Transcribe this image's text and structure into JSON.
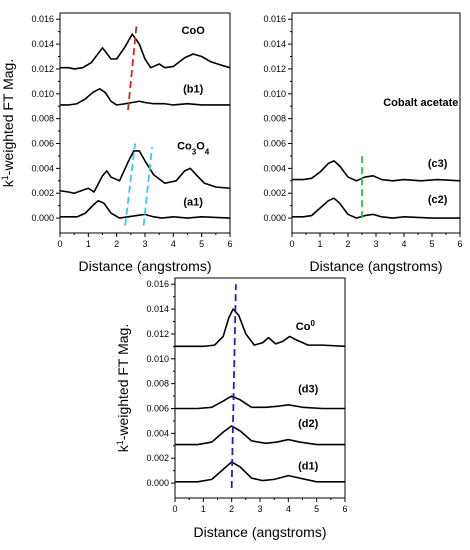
{
  "chart_data": [
    {
      "id": "top-left",
      "type": "line",
      "xlabel": "Distance (angstroms)",
      "ylabel": "k1-weighted FT Mag.",
      "ylabel_main": "k",
      "ylabel_sup": "1",
      "ylabel_rest": "-weighted FT Mag.",
      "xlim": [
        0,
        6
      ],
      "ylim": [
        -0.0012,
        0.0165
      ],
      "xticks": [
        "0",
        "1",
        "2",
        "3",
        "4",
        "5",
        "6"
      ],
      "yticks": [
        "0.000",
        "0.002",
        "0.004",
        "0.006",
        "0.008",
        "0.010",
        "0.012",
        "0.014",
        "0.016"
      ],
      "show_xlabel": true,
      "show_ylabel": true,
      "series": [
        {
          "name": "CoO",
          "color": "#000000",
          "points": [
            [
              0,
              0.0121
            ],
            [
              0.3,
              0.0121
            ],
            [
              0.5,
              0.012
            ],
            [
              0.8,
              0.0121
            ],
            [
              1.1,
              0.0125
            ],
            [
              1.5,
              0.0137
            ],
            [
              1.8,
              0.0128
            ],
            [
              2.0,
              0.0128
            ],
            [
              2.3,
              0.0138
            ],
            [
              2.55,
              0.0148
            ],
            [
              2.8,
              0.014
            ],
            [
              3.0,
              0.0128
            ],
            [
              3.2,
              0.0121
            ],
            [
              3.5,
              0.0124
            ],
            [
              3.7,
              0.0121
            ],
            [
              4.0,
              0.0122
            ],
            [
              4.4,
              0.0129
            ],
            [
              4.7,
              0.0132
            ],
            [
              5.0,
              0.013
            ],
            [
              5.3,
              0.0126
            ],
            [
              5.7,
              0.0123
            ],
            [
              6,
              0.0121
            ]
          ]
        },
        {
          "name": "(b1)",
          "color": "#000000",
          "points": [
            [
              0,
              0.0091
            ],
            [
              0.3,
              0.0091
            ],
            [
              0.6,
              0.0092
            ],
            [
              0.9,
              0.0096
            ],
            [
              1.15,
              0.0101
            ],
            [
              1.4,
              0.0104
            ],
            [
              1.6,
              0.0101
            ],
            [
              1.8,
              0.0094
            ],
            [
              2.0,
              0.0091
            ],
            [
              2.3,
              0.0092
            ],
            [
              2.55,
              0.0093
            ],
            [
              2.8,
              0.0094
            ],
            [
              3.0,
              0.0093
            ],
            [
              3.3,
              0.0092
            ],
            [
              3.7,
              0.0092
            ],
            [
              4.0,
              0.0091
            ],
            [
              4.5,
              0.0092
            ],
            [
              5.0,
              0.0091
            ],
            [
              5.5,
              0.0091
            ],
            [
              6,
              0.0091
            ]
          ]
        },
        {
          "name": "Co3O4",
          "color": "#000000",
          "points": [
            [
              0,
              0.0022
            ],
            [
              0.3,
              0.0021
            ],
            [
              0.5,
              0.002
            ],
            [
              0.75,
              0.0022
            ],
            [
              1.0,
              0.0024
            ],
            [
              1.2,
              0.0021
            ],
            [
              1.5,
              0.0034
            ],
            [
              1.65,
              0.0038
            ],
            [
              1.8,
              0.0033
            ],
            [
              2.1,
              0.003
            ],
            [
              2.4,
              0.0045
            ],
            [
              2.6,
              0.0054
            ],
            [
              2.8,
              0.0054
            ],
            [
              3.0,
              0.0046
            ],
            [
              3.3,
              0.0035
            ],
            [
              3.7,
              0.0028
            ],
            [
              4.1,
              0.003
            ],
            [
              4.4,
              0.0038
            ],
            [
              4.6,
              0.004
            ],
            [
              4.8,
              0.0035
            ],
            [
              5.1,
              0.0028
            ],
            [
              5.5,
              0.0025
            ],
            [
              6,
              0.0024
            ]
          ]
        },
        {
          "name": "(a1)",
          "color": "#000000",
          "points": [
            [
              0,
              0.0001
            ],
            [
              0.3,
              0.0001
            ],
            [
              0.6,
              0.0001
            ],
            [
              0.9,
              0.0004
            ],
            [
              1.15,
              0.001
            ],
            [
              1.35,
              0.0014
            ],
            [
              1.55,
              0.0012
            ],
            [
              1.8,
              0.0004
            ],
            [
              2.1,
              0.0
            ],
            [
              2.4,
              0.0001
            ],
            [
              2.7,
              0.0002
            ],
            [
              3.0,
              0.0003
            ],
            [
              3.3,
              0.0001
            ],
            [
              3.6,
              0.0
            ],
            [
              4.0,
              0.0001
            ],
            [
              4.5,
              0.0
            ],
            [
              5.0,
              0.0001
            ],
            [
              6,
              0.0
            ]
          ]
        }
      ],
      "annotations": [
        {
          "label": "CoO",
          "x": 4.7,
          "y": 0.0148
        },
        {
          "label": "(b1)",
          "x": 4.7,
          "y": 0.0101
        },
        {
          "label": "Co3O4",
          "sub": "3",
          "x": 4.7,
          "y": 0.0055
        },
        {
          "label": "(a1)",
          "x": 4.7,
          "y": 0.001
        }
      ],
      "ref_lines": [
        {
          "color": "#e02020",
          "x_start": 2.4,
          "y_start": 0.0087,
          "x_end": 2.7,
          "y_end": 0.0155
        },
        {
          "color": "#30d0e0",
          "x_start": 2.3,
          "y_start": -0.0006,
          "x_end": 2.65,
          "y_end": 0.006
        },
        {
          "color": "#30d0e0",
          "x_start": 2.95,
          "y_start": -0.0006,
          "x_end": 3.25,
          "y_end": 0.0057
        }
      ]
    },
    {
      "id": "top-right",
      "type": "line",
      "xlabel": "Distance (angstroms)",
      "xlim": [
        0,
        6
      ],
      "ylim": [
        -0.0012,
        0.0165
      ],
      "xticks": [
        "0",
        "1",
        "2",
        "3",
        "4",
        "5",
        "6"
      ],
      "yticks": [
        "0.000",
        "0.002",
        "0.004",
        "0.006",
        "0.008",
        "0.010",
        "0.012",
        "0.014",
        "0.016"
      ],
      "show_xlabel": true,
      "show_ylabel": false,
      "series": [
        {
          "name": "(c3)",
          "color": "#000000",
          "points": [
            [
              0,
              0.0031
            ],
            [
              0.4,
              0.0031
            ],
            [
              0.7,
              0.0032
            ],
            [
              1.0,
              0.0037
            ],
            [
              1.3,
              0.0044
            ],
            [
              1.5,
              0.0046
            ],
            [
              1.7,
              0.0042
            ],
            [
              2.0,
              0.0033
            ],
            [
              2.3,
              0.003
            ],
            [
              2.6,
              0.0033
            ],
            [
              2.9,
              0.0034
            ],
            [
              3.2,
              0.0031
            ],
            [
              3.6,
              0.003
            ],
            [
              4.0,
              0.0031
            ],
            [
              4.6,
              0.003
            ],
            [
              5.2,
              0.0031
            ],
            [
              6,
              0.003
            ]
          ]
        },
        {
          "name": "(c2)",
          "color": "#000000",
          "points": [
            [
              0,
              0.0001
            ],
            [
              0.4,
              0.0001
            ],
            [
              0.7,
              0.0002
            ],
            [
              1.0,
              0.0008
            ],
            [
              1.3,
              0.0014
            ],
            [
              1.5,
              0.0016
            ],
            [
              1.7,
              0.0012
            ],
            [
              2.0,
              0.0003
            ],
            [
              2.3,
              0.0
            ],
            [
              2.6,
              0.0002
            ],
            [
              2.9,
              0.0003
            ],
            [
              3.2,
              0.0001
            ],
            [
              3.6,
              0.0
            ],
            [
              4.0,
              0.0001
            ],
            [
              5.0,
              0.0
            ],
            [
              6,
              0.0
            ]
          ]
        }
      ],
      "annotations": [
        {
          "label": "Cobalt acetate",
          "x": 4.6,
          "y": 0.009
        },
        {
          "label": "(c3)",
          "x": 5.2,
          "y": 0.0041
        },
        {
          "label": "(c2)",
          "x": 5.2,
          "y": 0.0012
        }
      ],
      "ref_lines": [
        {
          "color": "#30c040",
          "x_start": 2.5,
          "y_start": 0.0,
          "x_end": 2.5,
          "y_end": 0.005
        }
      ]
    },
    {
      "id": "bottom",
      "type": "line",
      "xlabel": "Distance (angstroms)",
      "ylabel": "k1-weighted FT Mag.",
      "ylabel_main": "k",
      "ylabel_sup": "1",
      "ylabel_rest": "-weighted FT Mag.",
      "xlim": [
        0,
        6
      ],
      "ylim": [
        -0.0012,
        0.0165
      ],
      "xticks": [
        "0",
        "1",
        "2",
        "3",
        "4",
        "5",
        "6"
      ],
      "yticks": [
        "0.000",
        "0.002",
        "0.004",
        "0.006",
        "0.008",
        "0.010",
        "0.012",
        "0.014",
        "0.016"
      ],
      "show_xlabel": true,
      "show_ylabel": true,
      "series": [
        {
          "name": "Co0",
          "color": "#000000",
          "points": [
            [
              0,
              0.011
            ],
            [
              0.5,
              0.011
            ],
            [
              1.0,
              0.011
            ],
            [
              1.4,
              0.0111
            ],
            [
              1.7,
              0.0118
            ],
            [
              1.9,
              0.0133
            ],
            [
              2.05,
              0.014
            ],
            [
              2.25,
              0.0135
            ],
            [
              2.5,
              0.012
            ],
            [
              2.8,
              0.0111
            ],
            [
              3.1,
              0.0113
            ],
            [
              3.3,
              0.0117
            ],
            [
              3.55,
              0.0112
            ],
            [
              3.8,
              0.0114
            ],
            [
              4.05,
              0.0118
            ],
            [
              4.3,
              0.0115
            ],
            [
              4.7,
              0.0111
            ],
            [
              5.2,
              0.0111
            ],
            [
              6,
              0.011
            ]
          ]
        },
        {
          "name": "(d3)",
          "color": "#000000",
          "points": [
            [
              0,
              0.006
            ],
            [
              0.8,
              0.006
            ],
            [
              1.3,
              0.0061
            ],
            [
              1.7,
              0.0066
            ],
            [
              2.0,
              0.007
            ],
            [
              2.3,
              0.0067
            ],
            [
              2.7,
              0.0061
            ],
            [
              3.2,
              0.0061
            ],
            [
              3.7,
              0.0062
            ],
            [
              4.0,
              0.0063
            ],
            [
              4.5,
              0.0061
            ],
            [
              5.2,
              0.006
            ],
            [
              6,
              0.006
            ]
          ]
        },
        {
          "name": "(d2)",
          "color": "#000000",
          "points": [
            [
              0,
              0.0031
            ],
            [
              0.8,
              0.0031
            ],
            [
              1.3,
              0.0033
            ],
            [
              1.7,
              0.0041
            ],
            [
              2.0,
              0.0046
            ],
            [
              2.3,
              0.0042
            ],
            [
              2.7,
              0.0034
            ],
            [
              3.2,
              0.0032
            ],
            [
              3.6,
              0.0033
            ],
            [
              4.0,
              0.0035
            ],
            [
              4.4,
              0.0033
            ],
            [
              5.0,
              0.0031
            ],
            [
              6,
              0.0031
            ]
          ]
        },
        {
          "name": "(d1)",
          "color": "#000000",
          "points": [
            [
              0,
              0.0001
            ],
            [
              0.8,
              0.0001
            ],
            [
              1.3,
              0.0003
            ],
            [
              1.7,
              0.0011
            ],
            [
              2.0,
              0.0017
            ],
            [
              2.3,
              0.0013
            ],
            [
              2.7,
              0.0004
            ],
            [
              3.1,
              0.0002
            ],
            [
              3.5,
              0.0003
            ],
            [
              4.0,
              0.0006
            ],
            [
              4.4,
              0.0004
            ],
            [
              5.0,
              0.0001
            ],
            [
              6,
              0.0001
            ]
          ]
        }
      ],
      "annotations": [
        {
          "label": "Co0",
          "sup": "0",
          "x": 4.6,
          "y": 0.0123
        },
        {
          "label": "(d3)",
          "x": 4.7,
          "y": 0.0073
        },
        {
          "label": "(d2)",
          "x": 4.7,
          "y": 0.0045
        },
        {
          "label": "(d1)",
          "x": 4.7,
          "y": 0.0011
        }
      ],
      "ref_lines": [
        {
          "color": "#2020c0",
          "x_start": 2.0,
          "y_start": -0.0004,
          "x_end": 2.15,
          "y_end": 0.016
        }
      ]
    }
  ]
}
